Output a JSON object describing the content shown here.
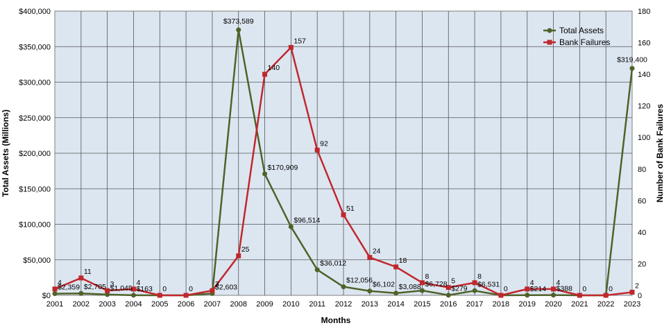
{
  "chart_data": {
    "type": "line",
    "title": "",
    "xlabel": "Months",
    "ylabel_left": "Total Assets (Millions)",
    "ylabel_right": "Number of Bank Failures",
    "categories": [
      "2001",
      "2002",
      "2003",
      "2004",
      "2005",
      "2006",
      "2007",
      "2008",
      "2009",
      "2010",
      "2011",
      "2012",
      "2013",
      "2014",
      "2015",
      "2016",
      "2017",
      "2018",
      "2019",
      "2020",
      "2021",
      "2022",
      "2023"
    ],
    "ylim_left": [
      0,
      400000
    ],
    "yticks_left": [
      "$0",
      "$50,000",
      "$100,000",
      "$150,000",
      "$200,000",
      "$250,000",
      "$300,000",
      "$350,000",
      "$400,000"
    ],
    "ylim_right": [
      0,
      180
    ],
    "yticks_right": [
      "0",
      "20",
      "40",
      "60",
      "80",
      "100",
      "120",
      "140",
      "160",
      "180"
    ],
    "grid": true,
    "legend_position": "top-right",
    "series": [
      {
        "name": "Total Assets",
        "axis": "left",
        "color": "#4f6228",
        "marker": "circle",
        "values": [
          2359,
          2705,
          1045,
          163,
          0,
          0,
          2603,
          373589,
          170909,
          96514,
          36012,
          12056,
          6102,
          3088,
          6728,
          279,
          6531,
          0,
          214,
          388,
          0,
          0,
          319400
        ],
        "labels": [
          "$2,359",
          "$2,705",
          "$1,045",
          "$163",
          "",
          "",
          "$2,603",
          "$373,589",
          "$170,909",
          "$96,514",
          "$36,012",
          "$12,056",
          "$6,102",
          "$3,088",
          "$6,728",
          "$279",
          "$6,531",
          "",
          "$214",
          "$388",
          "",
          "",
          "$319,400"
        ]
      },
      {
        "name": "Bank Failures",
        "axis": "right",
        "color": "#c0272d",
        "marker": "square",
        "values": [
          4,
          11,
          3,
          4,
          0,
          0,
          3,
          25,
          140,
          157,
          92,
          51,
          24,
          18,
          8,
          5,
          8,
          0,
          4,
          4,
          0,
          0,
          2
        ],
        "labels": [
          "4",
          "11",
          "3",
          "4",
          "0",
          "0",
          "3",
          "25",
          "140",
          "157",
          "92",
          "51",
          "24",
          "18",
          "8",
          "5",
          "8",
          "0",
          "4",
          "4",
          "0",
          "0",
          "2"
        ]
      }
    ]
  }
}
